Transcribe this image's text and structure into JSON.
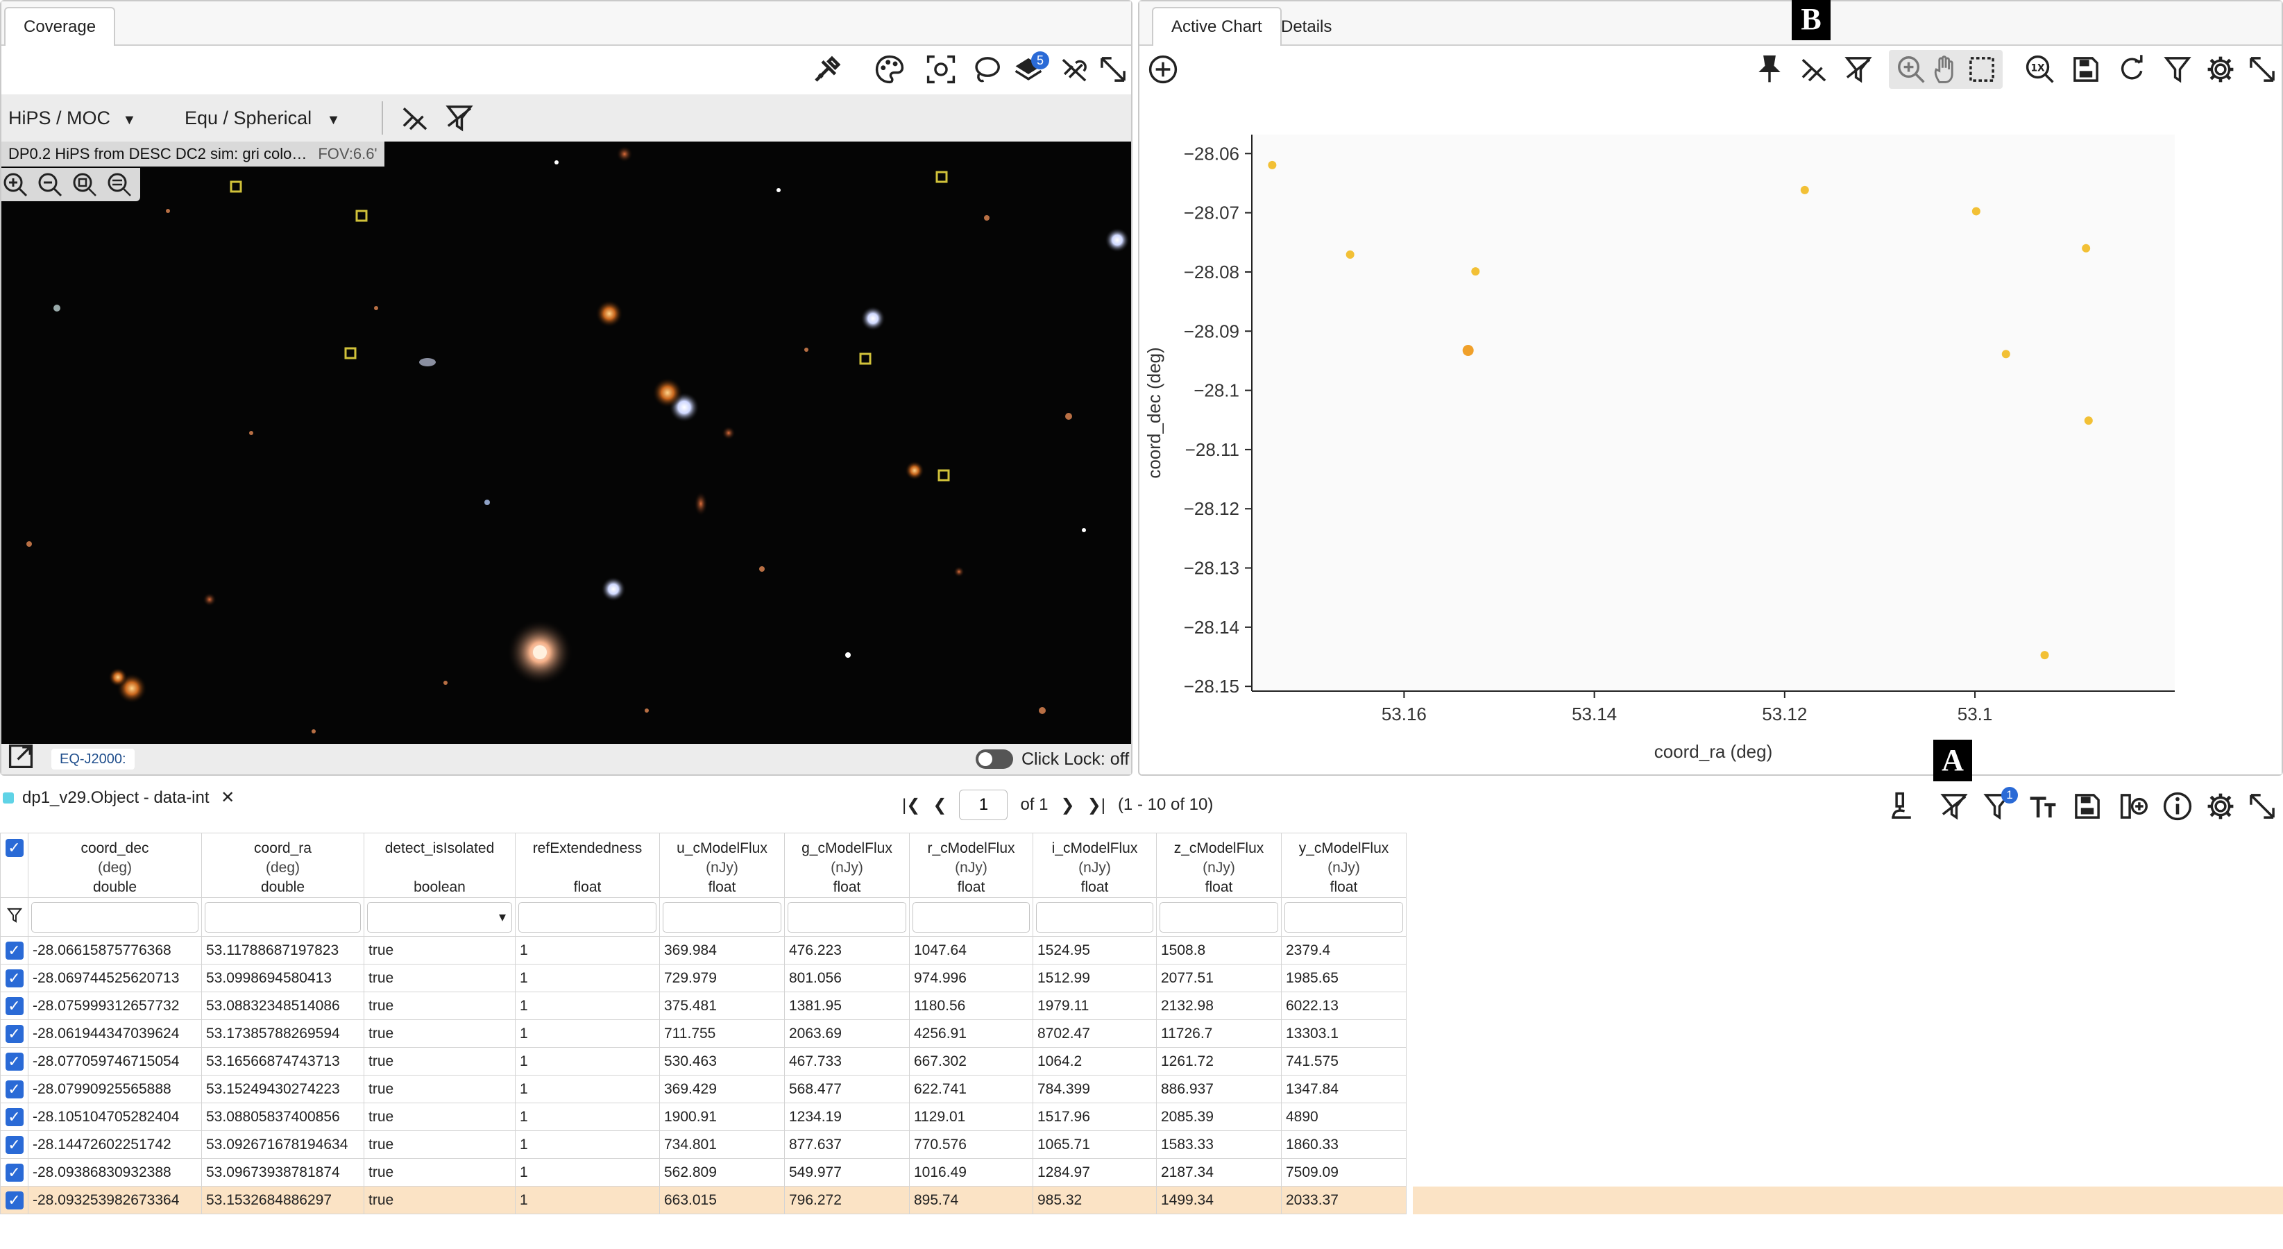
{
  "left_panel": {
    "tab": "Coverage",
    "hips_select": "HiPS / MOC",
    "coord_select": "Equ / Spherical",
    "image_title": "DP0.2 HiPS from DESC DC2 sim: gri colo…",
    "fov": "FOV:6.6'",
    "coord_system": "EQ-J2000:",
    "click_lock": "Click Lock: off",
    "layers_badge": "5"
  },
  "right_panel": {
    "tabs": [
      "Active Chart",
      "Details"
    ]
  },
  "chart_data": {
    "type": "scatter",
    "xlabel": "coord_ra (deg)",
    "ylabel": "coord_dec (deg)",
    "x_reversed": true,
    "xlim": [
      53.176,
      53.079
    ],
    "ylim": [
      -28.1508,
      -28.0568
    ],
    "x_ticks": [
      "53.16",
      "53.14",
      "53.12",
      "53.1"
    ],
    "y_ticks": [
      "−28.06",
      "−28.07",
      "−28.08",
      "−28.09",
      "−28.1",
      "−28.11",
      "−28.12",
      "−28.13",
      "−28.14",
      "−28.15"
    ],
    "color": "#f2c035",
    "highlight_color": "#f0a02a",
    "points": [
      {
        "x": 53.11788687197823,
        "y": -28.06615875776368
      },
      {
        "x": 53.0998694580413,
        "y": -28.069744525620713
      },
      {
        "x": 53.08832348514086,
        "y": -28.075999312657732
      },
      {
        "x": 53.17385788269594,
        "y": -28.061944347039624
      },
      {
        "x": 53.16566874743713,
        "y": -28.077059746715054
      },
      {
        "x": 53.15249430274223,
        "y": -28.07990925565888
      },
      {
        "x": 53.08805837400856,
        "y": -28.105104705282404
      },
      {
        "x": 53.092671678194634,
        "y": -28.14472602251742
      },
      {
        "x": 53.09673938781874,
        "y": -28.09386830932388
      },
      {
        "x": 53.1532684886297,
        "y": -28.093253982673364,
        "highlighted": true
      }
    ]
  },
  "table": {
    "title": "dp1_v29.Object - data-int",
    "page_value": "1",
    "page_of": "of 1",
    "range": "(1 - 10 of 10)",
    "filter_badge": "1",
    "columns": [
      {
        "name": "coord_dec",
        "unit": "(deg)",
        "type": "double"
      },
      {
        "name": "coord_ra",
        "unit": "(deg)",
        "type": "double"
      },
      {
        "name": "detect_isIsolated",
        "unit": "",
        "type": "boolean"
      },
      {
        "name": "refExtendedness",
        "unit": "",
        "type": "float"
      },
      {
        "name": "u_cModelFlux",
        "unit": "(nJy)",
        "type": "float"
      },
      {
        "name": "g_cModelFlux",
        "unit": "(nJy)",
        "type": "float"
      },
      {
        "name": "r_cModelFlux",
        "unit": "(nJy)",
        "type": "float"
      },
      {
        "name": "i_cModelFlux",
        "unit": "(nJy)",
        "type": "float"
      },
      {
        "name": "z_cModelFlux",
        "unit": "(nJy)",
        "type": "float"
      },
      {
        "name": "y_cModelFlux",
        "unit": "(nJy)",
        "type": "float"
      }
    ],
    "rows": [
      [
        "-28.06615875776368",
        "53.11788687197823",
        "true",
        "1",
        "369.984",
        "476.223",
        "1047.64",
        "1524.95",
        "1508.8",
        "2379.4"
      ],
      [
        "-28.069744525620713",
        "53.0998694580413",
        "true",
        "1",
        "729.979",
        "801.056",
        "974.996",
        "1512.99",
        "2077.51",
        "1985.65"
      ],
      [
        "-28.075999312657732",
        "53.08832348514086",
        "true",
        "1",
        "375.481",
        "1381.95",
        "1180.56",
        "1979.11",
        "2132.98",
        "6022.13"
      ],
      [
        "-28.061944347039624",
        "53.17385788269594",
        "true",
        "1",
        "711.755",
        "2063.69",
        "4256.91",
        "8702.47",
        "11726.7",
        "13303.1"
      ],
      [
        "-28.077059746715054",
        "53.16566874743713",
        "true",
        "1",
        "530.463",
        "467.733",
        "667.302",
        "1064.2",
        "1261.72",
        "741.575"
      ],
      [
        "-28.07990925565888",
        "53.15249430274223",
        "true",
        "1",
        "369.429",
        "568.477",
        "622.741",
        "784.399",
        "886.937",
        "1347.84"
      ],
      [
        "-28.105104705282404",
        "53.08805837400856",
        "true",
        "1",
        "1900.91",
        "1234.19",
        "1129.01",
        "1517.96",
        "2085.39",
        "4890"
      ],
      [
        "-28.14472602251742",
        "53.092671678194634",
        "true",
        "1",
        "734.801",
        "877.637",
        "770.576",
        "1065.71",
        "1583.33",
        "1860.33"
      ],
      [
        "-28.09386830932388",
        "53.09673938781874",
        "true",
        "1",
        "562.809",
        "549.977",
        "1016.49",
        "1284.97",
        "2187.34",
        "7509.09"
      ],
      [
        "-28.093253982673364",
        "53.1532684886297",
        "true",
        "1",
        "663.015",
        "796.272",
        "895.74",
        "985.32",
        "1499.34",
        "2033.37"
      ]
    ],
    "selected_row": 9
  },
  "markers": {
    "a": "A",
    "b": "B"
  }
}
